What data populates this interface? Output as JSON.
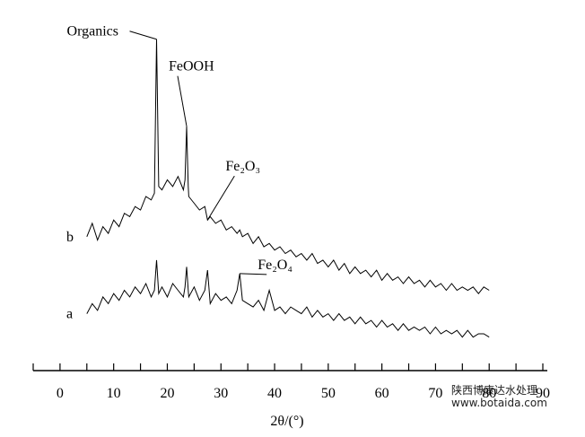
{
  "chart_data": {
    "type": "line",
    "x_label": "2θ/(°)",
    "x": [
      5,
      6,
      7,
      8,
      9,
      10,
      11,
      12,
      13,
      14,
      15,
      16,
      17,
      17.6,
      18,
      18.4,
      19,
      20,
      21,
      22,
      23,
      23.3,
      23.6,
      23.9,
      24,
      25,
      26,
      27,
      27.5,
      28,
      29,
      30,
      31,
      32,
      33,
      33.5,
      34,
      35,
      36,
      37,
      38,
      39,
      40,
      41,
      42,
      43,
      44,
      45,
      46,
      47,
      48,
      49,
      50,
      51,
      52,
      53,
      54,
      55,
      56,
      57,
      58,
      59,
      60,
      61,
      62,
      63,
      64,
      65,
      66,
      67,
      68,
      69,
      70,
      71,
      72,
      73,
      74,
      75,
      76,
      77,
      78,
      79,
      80
    ],
    "series": [
      {
        "name": "b",
        "color": "#000000",
        "values": [
          40,
          44,
          39,
          43,
          41,
          45,
          43,
          47,
          46,
          49,
          48,
          52,
          51,
          53,
          99,
          55,
          54,
          57,
          55,
          58,
          54,
          57,
          73,
          55,
          52,
          50,
          48,
          49,
          45,
          46,
          44,
          45,
          42,
          43,
          41,
          42,
          40,
          41,
          38,
          40,
          37,
          38,
          36,
          37,
          35,
          36,
          34,
          35,
          33,
          35,
          32,
          33,
          31,
          33,
          30,
          32,
          29,
          31,
          29,
          30,
          28,
          30,
          27,
          29,
          27,
          28,
          26,
          28,
          26,
          27,
          25,
          27,
          25,
          26,
          24,
          26,
          24,
          25,
          24,
          25,
          23,
          25,
          24
        ]
      },
      {
        "name": "a",
        "color": "#000000",
        "values": [
          17,
          20,
          18,
          22,
          20,
          23,
          21,
          24,
          22,
          25,
          23,
          26,
          22,
          24,
          33,
          23,
          25,
          22,
          26,
          24,
          22,
          25,
          31,
          24,
          22,
          25,
          21,
          24,
          30,
          20,
          23,
          21,
          22,
          20,
          24,
          29,
          21,
          20,
          19,
          21,
          18,
          24,
          18,
          19,
          17,
          19,
          18,
          17,
          19,
          16,
          18,
          16,
          17,
          15,
          17,
          15,
          16,
          14,
          16,
          14,
          15,
          13,
          15,
          13,
          14,
          12,
          14,
          12,
          13,
          12,
          13,
          11,
          13,
          11,
          12,
          11,
          12,
          10,
          12,
          10,
          11,
          11,
          10
        ]
      }
    ],
    "annotations": [
      {
        "text": "Organics",
        "x": 18,
        "series": "b"
      },
      {
        "text": "FeOOH",
        "x": 23.6,
        "series": "b"
      },
      {
        "text": "Fe₂O₃",
        "x": 27.5,
        "series": "b"
      },
      {
        "text": "Fe₂O₄",
        "x": 33.5,
        "series": "a"
      }
    ],
    "xlim": [
      -5,
      90
    ],
    "xticks": [
      0,
      10,
      20,
      30,
      40,
      50,
      60,
      70,
      80,
      90
    ],
    "xminorticks": [
      -5,
      5,
      15,
      25,
      35,
      45,
      55,
      65,
      75,
      85
    ],
    "ylim": [
      0,
      100
    ]
  },
  "watermark": {
    "line1": "陕西博康达水处理",
    "line2": "www.botaida.com"
  }
}
